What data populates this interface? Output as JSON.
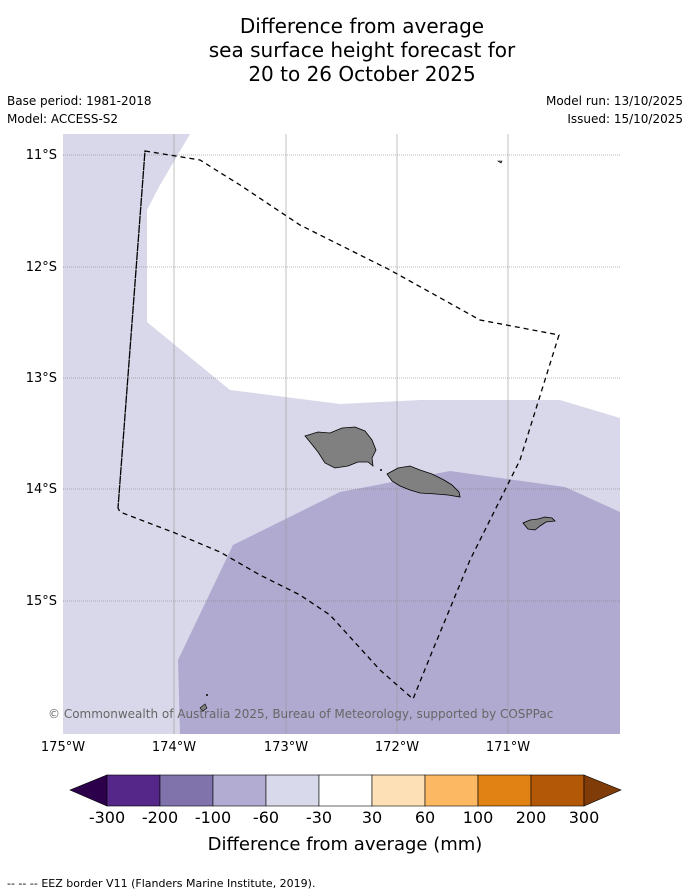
{
  "title": {
    "line1": "Difference from average",
    "line2": "sea surface height forecast for",
    "line3": "20 to 26 October 2025"
  },
  "meta": {
    "base_period": "Base period: 1981-2018",
    "model": "Model: ACCESS-S2",
    "model_run": "Model run: 13/10/2025",
    "issued": "Issued: 15/10/2025"
  },
  "map": {
    "lat_labels": [
      "11°S",
      "12°S",
      "13°S",
      "14°S",
      "15°S"
    ],
    "lon_labels": [
      "175°W",
      "174°W",
      "173°W",
      "172°W",
      "171°W"
    ],
    "copyright": "© Commonwealth of Australia 2025, Bureau of Meteorology, supported by COSPPac",
    "colors": {
      "band_minus60_minus30": "#d8d8ea",
      "band_minus100_minus60": "#b1abd1",
      "land": "#808080"
    }
  },
  "colorbar": {
    "label": "Difference from average (mm)",
    "ticks": [
      "-300",
      "-200",
      "-100",
      "-60",
      "-30",
      "30",
      "60",
      "100",
      "200",
      "300"
    ],
    "colors": {
      "under": "#2d004b",
      "c1": "#542788",
      "c2": "#8073ac",
      "c3": "#b2abd2",
      "c4": "#d8daeb",
      "c5": "#ffffff",
      "c6": "#fee0b6",
      "c7": "#fdb863",
      "c8": "#e08214",
      "c9": "#b35806",
      "over": "#7f3b08"
    }
  },
  "footer": {
    "legend_symbol": "-- -- --",
    "legend_text": "EEZ border V11 (Flanders Marine Institute, 2019)."
  }
}
